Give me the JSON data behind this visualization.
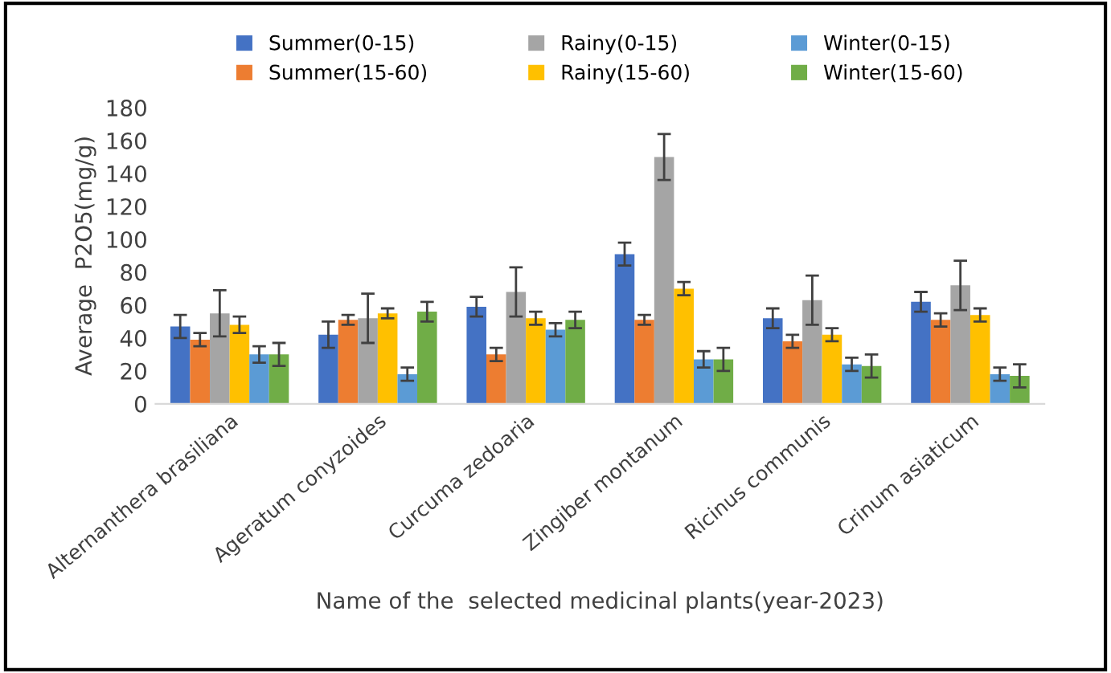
{
  "chart_data": {
    "type": "bar",
    "xlabel": "Name of the  selected medicinal plants(year-2023)",
    "ylabel": "Average  P2O5(mg/g)",
    "categories": [
      "Alternanthera brasiliana",
      "Ageratum conyzoides",
      "Curcuma zedoaria",
      "Zingiber montanum",
      "Ricinus communis",
      "Crinum asiaticum"
    ],
    "series": [
      {
        "name": "Summer(0-15)",
        "color": "#4472c4",
        "values": [
          47,
          42,
          59,
          91,
          52,
          62
        ],
        "errors": [
          7,
          8,
          6,
          7,
          6,
          6
        ]
      },
      {
        "name": "Summer(15-60)",
        "color": "#ed7d31",
        "values": [
          39,
          51,
          30,
          51,
          38,
          51
        ],
        "errors": [
          4,
          3,
          4,
          3,
          4,
          4
        ]
      },
      {
        "name": "Rainy(0-15)",
        "color": "#a5a5a5",
        "values": [
          55,
          52,
          68,
          150,
          63,
          72
        ],
        "errors": [
          14,
          15,
          15,
          14,
          15,
          15
        ]
      },
      {
        "name": "Rainy(15-60)",
        "color": "#ffc000",
        "values": [
          48,
          55,
          52,
          70,
          42,
          54
        ],
        "errors": [
          5,
          3,
          4,
          4,
          4,
          4
        ]
      },
      {
        "name": "Winter(0-15)",
        "color": "#5b9bd5",
        "values": [
          30,
          18,
          45,
          27,
          24,
          18
        ],
        "errors": [
          5,
          4,
          4,
          5,
          4,
          4
        ]
      },
      {
        "name": "Winter(15-60)",
        "color": "#70ad47",
        "values": [
          30,
          56,
          51,
          27,
          23,
          17
        ],
        "errors": [
          7,
          6,
          5,
          7,
          7,
          7
        ]
      }
    ],
    "ylim": [
      0,
      180
    ],
    "yticks": [
      0,
      20,
      40,
      60,
      80,
      100,
      120,
      140,
      160,
      180
    ],
    "grid": false,
    "legend": "top"
  }
}
